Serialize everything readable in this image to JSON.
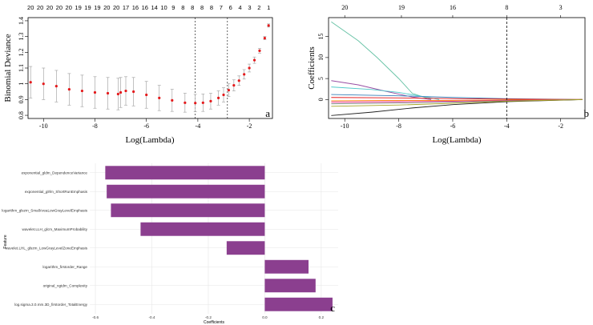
{
  "colors": {
    "cv_point": "#e41a1c",
    "errorbar": "#9a9a9a",
    "bar": "#8b3f8f",
    "axis": "#000000",
    "grid": "#e6e6e6",
    "vline": "#000000"
  },
  "chart_data": [
    {
      "panel": "a",
      "type": "line",
      "title": "",
      "xlabel": "Log(Lambda)",
      "ylabel": "Binomial Deviance",
      "xlim": [
        -10.6,
        -1.1
      ],
      "ylim": [
        0.78,
        1.42
      ],
      "x_ticks": [
        -10,
        -8,
        -6,
        -4,
        -2
      ],
      "y_ticks": [
        0.8,
        0.9,
        1.0,
        1.1,
        1.2,
        1.3,
        1.4
      ],
      "top_axis_counts": [
        "20",
        "20",
        "20",
        "20",
        "20",
        "19",
        "19",
        "19",
        "20",
        "20",
        "17",
        "16",
        "16",
        "14",
        "10",
        "9",
        "8",
        "8",
        "8",
        "8",
        "7",
        "6",
        "4",
        "3",
        "2",
        "1"
      ],
      "lambda_min": -4.1,
      "lambda_1se": -2.85,
      "series": [
        {
          "name": "cv mean",
          "x": [
            -10.5,
            -10.0,
            -9.5,
            -9.0,
            -8.5,
            -8.0,
            -7.5,
            -7.1,
            -7.0,
            -6.8,
            -6.5,
            -6.0,
            -5.5,
            -5.0,
            -4.5,
            -4.1,
            -3.8,
            -3.5,
            -3.2,
            -3.0,
            -2.8,
            -2.6,
            -2.4,
            -2.2,
            -2.0,
            -1.8,
            -1.6,
            -1.4,
            -1.25
          ],
          "mean": [
            1.01,
            1.0,
            0.985,
            0.965,
            0.955,
            0.945,
            0.94,
            0.935,
            0.945,
            0.955,
            0.95,
            0.93,
            0.91,
            0.895,
            0.88,
            0.878,
            0.88,
            0.89,
            0.91,
            0.93,
            0.96,
            0.99,
            1.02,
            1.06,
            1.1,
            1.15,
            1.21,
            1.29,
            1.37
          ],
          "sd": [
            0.1,
            0.1,
            0.1,
            0.1,
            0.1,
            0.1,
            0.1,
            0.1,
            0.095,
            0.09,
            0.09,
            0.085,
            0.08,
            0.07,
            0.06,
            0.055,
            0.055,
            0.05,
            0.045,
            0.045,
            0.04,
            0.035,
            0.03,
            0.03,
            0.025,
            0.02,
            0.015,
            0.01,
            0.01
          ]
        }
      ],
      "panel_label": "a"
    },
    {
      "panel": "b",
      "type": "line",
      "title": "",
      "xlabel": "Log(Lambda)",
      "ylabel": "Coefficients",
      "xlim": [
        -10.6,
        -1.1
      ],
      "ylim": [
        -4.5,
        19.5
      ],
      "x_ticks": [
        -10,
        -8,
        -6,
        -4,
        -2
      ],
      "y_ticks": [
        0,
        5,
        10,
        15
      ],
      "top_axis_counts": [
        "20",
        "19",
        "16",
        "8",
        "3"
      ],
      "top_axis_positions": [
        -10.0,
        -7.9,
        -6.0,
        -4.0,
        -2.0
      ],
      "lambda_marker": -4.0,
      "series": [
        {
          "name": "path-green",
          "color": "#66c2a5",
          "x": [
            -10.5,
            -9.5,
            -8.8,
            -8.0,
            -7.5,
            -6.8
          ],
          "y": [
            18.5,
            14.0,
            10.0,
            5.0,
            1.5,
            0.0
          ]
        },
        {
          "name": "path-purple",
          "color": "#984ea3",
          "x": [
            -10.5,
            -9.5,
            -8.5,
            -7.5,
            -6.8
          ],
          "y": [
            4.5,
            3.5,
            2.0,
            0.6,
            0.0
          ]
        },
        {
          "name": "path-cyan",
          "color": "#4ec9c9",
          "x": [
            -10.5,
            -9.0,
            -8.0,
            -7.0,
            -6.5
          ],
          "y": [
            3.0,
            2.4,
            1.7,
            0.6,
            0.0
          ]
        },
        {
          "name": "path-blue",
          "color": "#377eb8",
          "x": [
            -10.5,
            -8.0,
            -6.0,
            -4.0,
            -1.2
          ],
          "y": [
            1.2,
            0.9,
            0.5,
            0.2,
            0.0
          ]
        },
        {
          "name": "path-red",
          "color": "#e41a1c",
          "x": [
            -10.5,
            -8.0,
            -6.0,
            -4.0,
            -1.2
          ],
          "y": [
            0.5,
            0.4,
            0.2,
            0.1,
            0.0
          ]
        },
        {
          "name": "path-orange",
          "color": "#ff7f00",
          "x": [
            -10.5,
            -8.0,
            -6.0,
            -4.0,
            -1.2
          ],
          "y": [
            -0.3,
            -0.2,
            -0.2,
            -0.1,
            0.0
          ]
        },
        {
          "name": "path-magenta",
          "color": "#e7298a",
          "x": [
            -10.5,
            -8.0,
            -6.0,
            -4.0,
            -1.2
          ],
          "y": [
            -0.6,
            -0.5,
            -0.4,
            -0.2,
            0.0
          ]
        },
        {
          "name": "path-gray",
          "color": "#7f7f7f",
          "x": [
            -10.5,
            -8.0,
            -6.0,
            -4.0,
            -1.2
          ],
          "y": [
            -1.0,
            -0.8,
            -0.6,
            -0.3,
            0.0
          ]
        },
        {
          "name": "path-dark",
          "color": "#222222",
          "x": [
            -10.5,
            -9.0,
            -7.5,
            -6.0,
            -4.0,
            -1.2
          ],
          "y": [
            -3.8,
            -3.0,
            -2.0,
            -1.2,
            -0.5,
            0.0
          ]
        },
        {
          "name": "path-olive",
          "color": "#a6a62a",
          "x": [
            -10.5,
            -8.0,
            -6.0,
            -4.0,
            -1.2
          ],
          "y": [
            -1.6,
            -1.3,
            -0.9,
            -0.4,
            0.0
          ]
        }
      ],
      "panel_label": "b"
    },
    {
      "panel": "c",
      "type": "bar",
      "orientation": "horizontal",
      "title": "",
      "xlabel": "Coefficients",
      "ylabel": "Feature",
      "xlim": [
        -0.62,
        0.26
      ],
      "x_ticks": [
        -0.6,
        -0.4,
        -0.2,
        0.0,
        0.2
      ],
      "x_tick_labels": [
        "-0.6",
        "-0.4",
        "-0.2",
        "0.0",
        "0.2"
      ],
      "categories": [
        "exponential_gldm_DependenceVariance",
        "exponential_glrlm_ShortRunEmphasis",
        "logarithm_glszm_SmallAreaLowGrayLevelEmphasis",
        "wavelet.LLH_glcm_MaximumProbability",
        "wavelet.LHL_glszm_LowGrayLevelZoneEmphasis",
        "logarithm_firstorder_Range",
        "original_ngtdm_Complexity",
        "log.sigma.3.0.mm.3D_firstorder_TotalEnergy"
      ],
      "values": [
        -0.565,
        -0.56,
        -0.545,
        -0.44,
        -0.135,
        0.155,
        0.18,
        0.24
      ],
      "panel_label": "c"
    }
  ]
}
